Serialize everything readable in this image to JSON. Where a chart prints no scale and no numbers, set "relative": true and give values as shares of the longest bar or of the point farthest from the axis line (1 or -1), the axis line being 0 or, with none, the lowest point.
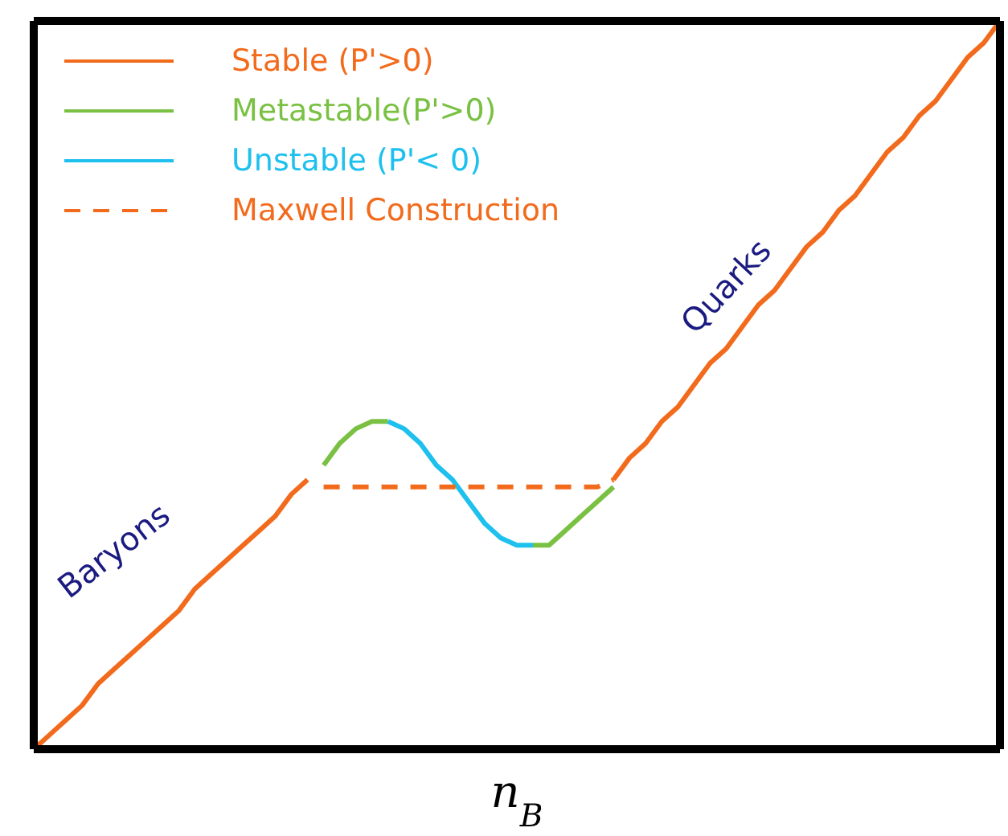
{
  "chart_data": {
    "type": "line",
    "relative": true,
    "xlabel": "n$_{B}$",
    "legend": "top left",
    "marker": "none",
    "categories": [
      null,
      null,
      null,
      null,
      null,
      null,
      null,
      null,
      null,
      null,
      null,
      null,
      null,
      null,
      null,
      null,
      null,
      null,
      null,
      null,
      null,
      null,
      null,
      null,
      null,
      null,
      null,
      null,
      null,
      null,
      null,
      null,
      null,
      null,
      null,
      null,
      null,
      null,
      null,
      null,
      null,
      null,
      null,
      null,
      null,
      null,
      null,
      null,
      null,
      null,
      null,
      null,
      null,
      null,
      null,
      null,
      null,
      null,
      null,
      null,
      null
    ],
    "series": [
      {
        "name": "Stable (P'>0)",
        "color": "#f26b1d",
        "line_style": "solid",
        "values": [
          0,
          0.02,
          0.04,
          0.06,
          0.09,
          0.11,
          0.13,
          0.15,
          0.17,
          0.19,
          0.22,
          0.24,
          0.26,
          0.28,
          0.3,
          0.32,
          0.35,
          0.37,
          null,
          null,
          null,
          null,
          null,
          null,
          null,
          null,
          null,
          null,
          null,
          null,
          null,
          null,
          null,
          null,
          null,
          null,
          0.37,
          0.4,
          0.42,
          0.45,
          0.47,
          0.5,
          0.53,
          0.55,
          0.58,
          0.61,
          0.63,
          0.66,
          0.69,
          0.71,
          0.74,
          0.76,
          0.79,
          0.82,
          0.84,
          0.87,
          0.89,
          0.92,
          0.95,
          0.97,
          1
        ]
      },
      {
        "name": "Metastable(P'>0)",
        "color": "#7ac143",
        "line_style": "solid",
        "values": [
          null,
          null,
          null,
          null,
          null,
          null,
          null,
          null,
          null,
          null,
          null,
          null,
          null,
          null,
          null,
          null,
          null,
          null,
          0.39,
          0.42,
          0.44,
          0.45,
          0.45,
          null,
          null,
          null,
          null,
          null,
          null,
          null,
          null,
          0.28,
          0.28,
          0.3,
          0.32,
          0.34,
          0.36,
          null,
          null,
          null,
          null,
          null,
          null,
          null,
          null,
          null,
          null,
          null,
          null,
          null,
          null,
          null,
          null,
          null,
          null,
          null,
          null,
          null,
          null,
          null,
          null
        ]
      },
      {
        "name": "Unstable (P'< 0)",
        "color": "#1ec0ee",
        "line_style": "solid",
        "values": [
          null,
          null,
          null,
          null,
          null,
          null,
          null,
          null,
          null,
          null,
          null,
          null,
          null,
          null,
          null,
          null,
          null,
          null,
          null,
          null,
          null,
          null,
          0.45,
          0.44,
          0.42,
          0.39,
          0.37,
          0.34,
          0.31,
          0.29,
          0.28,
          0.28,
          null,
          null,
          null,
          null,
          null,
          null,
          null,
          null,
          null,
          null,
          null,
          null,
          null,
          null,
          null,
          null,
          null,
          null,
          null,
          null,
          null,
          null,
          null,
          null,
          null,
          null,
          null,
          null,
          null
        ]
      },
      {
        "name": "Maxwell Construction",
        "color": "#f26b1d",
        "line_style": "dashed",
        "values": [
          null,
          null,
          null,
          null,
          null,
          null,
          null,
          null,
          null,
          null,
          null,
          null,
          null,
          null,
          null,
          null,
          null,
          null,
          0.36,
          0.36,
          0.36,
          0.36,
          0.36,
          0.36,
          0.36,
          0.36,
          0.36,
          0.36,
          0.36,
          0.36,
          0.36,
          0.36,
          0.36,
          0.36,
          0.36,
          0.36,
          0.37,
          null,
          null,
          null,
          null,
          null,
          null,
          null,
          null,
          null,
          null,
          null,
          null,
          null,
          null,
          null,
          null,
          null,
          null,
          null,
          null,
          null,
          null,
          null,
          null
        ]
      }
    ],
    "annotations": [
      "Baryons",
      "Quarks"
    ]
  }
}
